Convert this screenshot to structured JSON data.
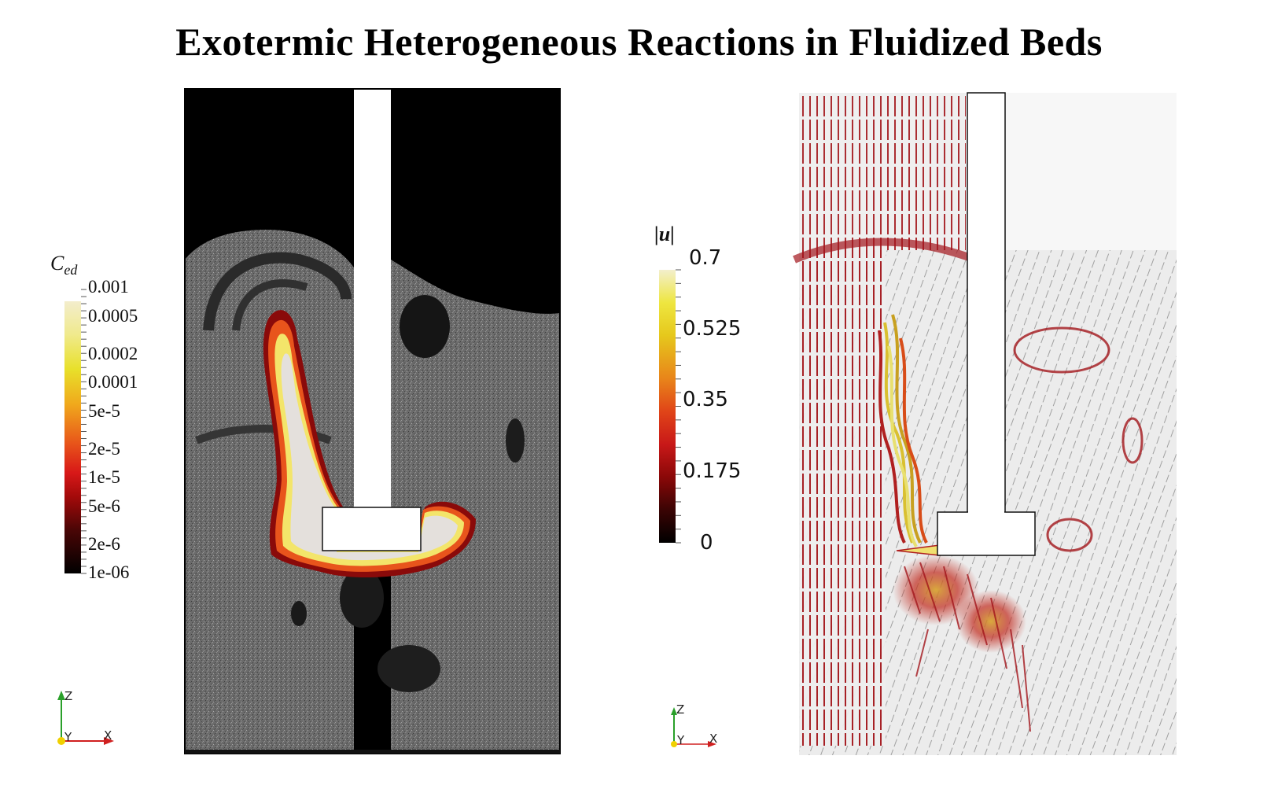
{
  "title": "Exotermic Heterogeneous Reactions in Fluidized Beds",
  "left_panel": {
    "colorbar": {
      "title": "C",
      "title_sub": "ed",
      "labels": [
        "0.001",
        "0.0005",
        "0.0002",
        "0.0001",
        "5e-5",
        "2e-5",
        "1e-5",
        "5e-6",
        "2e-6",
        "1e-06"
      ],
      "scale": "log",
      "range": [
        "1e-06",
        "0.001"
      ]
    },
    "axes_triad": {
      "up": "Z",
      "depth": "Y",
      "right": "X"
    }
  },
  "right_panel": {
    "colorbar": {
      "title": "|u|",
      "labels": [
        "0.7",
        "0.525",
        "0.35",
        "0.175",
        "0"
      ],
      "scale": "linear",
      "range": [
        0,
        0.7
      ]
    },
    "axes_triad": {
      "up": "Z",
      "depth": "Y",
      "right": "X"
    }
  },
  "colors": {
    "bed_gray": "#6e6e6e",
    "empty_black": "#000000",
    "reaction_core": "#e4e0dc",
    "reaction_hot": "#f5e15a",
    "reaction_mid": "#e8541c",
    "reaction_edge": "#8a0a0a",
    "vector_red": "#b0151c",
    "vector_gray": "#9a9a9a"
  }
}
